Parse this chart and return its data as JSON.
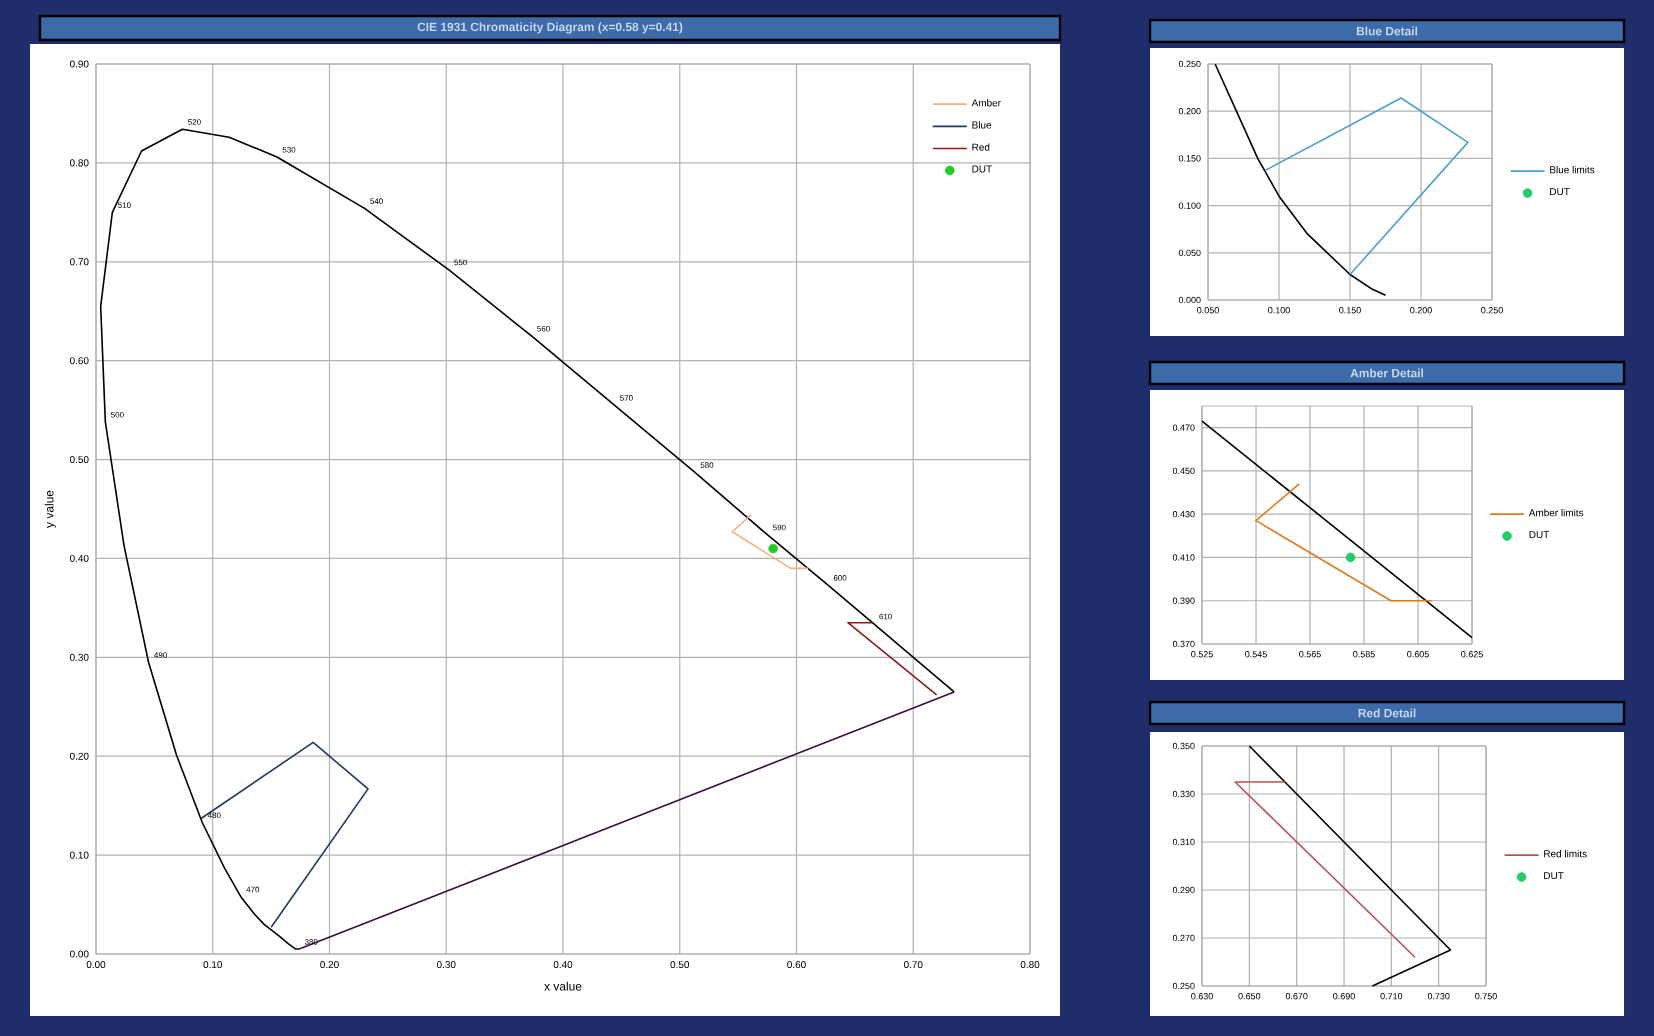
{
  "chart_data": [
    {
      "type": "line",
      "title": "CIE 1931 Chromaticity Diagram (x=0.58 y=0.41)",
      "xlabel": "x value",
      "ylabel": "y value",
      "xlim": [
        0,
        0.8
      ],
      "ylim": [
        0,
        0.9
      ],
      "xticks": [
        {
          "value": 0,
          "label": "0.00"
        },
        {
          "value": 0.1,
          "label": "0.10"
        },
        {
          "value": 0.2,
          "label": "0.20"
        },
        {
          "value": 0.3,
          "label": "0.30"
        },
        {
          "value": 0.4,
          "label": "0.40"
        },
        {
          "value": 0.5,
          "label": "0.50"
        },
        {
          "value": 0.6,
          "label": "0.60"
        },
        {
          "value": 0.7,
          "label": "0.70"
        },
        {
          "value": 0.8,
          "label": "0.80"
        }
      ],
      "yticks": [
        {
          "value": 0,
          "label": "0.00"
        },
        {
          "value": 0.1,
          "label": "0.10"
        },
        {
          "value": 0.2,
          "label": "0.20"
        },
        {
          "value": 0.3,
          "label": "0.30"
        },
        {
          "value": 0.4,
          "label": "0.40"
        },
        {
          "value": 0.5,
          "label": "0.50"
        },
        {
          "value": 0.6,
          "label": "0.60"
        },
        {
          "value": 0.7,
          "label": "0.70"
        },
        {
          "value": 0.8,
          "label": "0.80"
        },
        {
          "value": 0.9,
          "label": "0.90"
        }
      ],
      "grid": true,
      "legend": "top right",
      "series": [
        {
          "color": "#000000",
          "x": [
            0.174,
            0.171,
            0.164,
            0.157,
            0.144,
            0.136,
            0.124,
            0.11,
            0.091,
            0.069,
            0.045,
            0.024,
            0.008,
            0.004,
            0.014,
            0.039,
            0.074,
            0.114,
            0.155,
            0.23,
            0.302,
            0.373,
            0.444,
            0.513,
            0.575,
            0.627,
            0.666,
            0.692,
            0.719,
            0.735
          ],
          "values": [
            0.005,
            0.005,
            0.011,
            0.018,
            0.03,
            0.04,
            0.058,
            0.087,
            0.133,
            0.201,
            0.295,
            0.413,
            0.538,
            0.655,
            0.75,
            0.812,
            0.834,
            0.826,
            0.806,
            0.754,
            0.692,
            0.625,
            0.555,
            0.487,
            0.424,
            0.373,
            0.334,
            0.308,
            0.281,
            0.265
          ]
        },
        {
          "color": "#3a1040",
          "x": [
            0.735,
            0.174
          ],
          "values": [
            0.265,
            0.005
          ]
        },
        {
          "name": "Amber",
          "color": "#f4b183",
          "x": [
            0.561,
            0.545,
            0.595,
            0.61
          ],
          "values": [
            0.444,
            0.427,
            0.39,
            0.39
          ]
        },
        {
          "name": "Blue",
          "color": "#1f3864",
          "x": [
            0.15,
            0.233,
            0.186,
            0.09
          ],
          "values": [
            0.027,
            0.167,
            0.214,
            0.137
          ]
        },
        {
          "name": "Red",
          "color": "#8b1a1a",
          "x": [
            0.665,
            0.644,
            0.72
          ],
          "values": [
            0.335,
            0.335,
            0.262
          ]
        },
        {
          "name": "DUT",
          "type": "scatter",
          "color": "#22cc22",
          "x": [
            0.58
          ],
          "values": [
            0.41
          ]
        }
      ],
      "annotations": [
        {
          "text": "520",
          "x": 0.074,
          "y": 0.834
        },
        {
          "text": "530",
          "x": 0.155,
          "y": 0.806
        },
        {
          "text": "540",
          "x": 0.23,
          "y": 0.754
        },
        {
          "text": "550",
          "x": 0.302,
          "y": 0.692
        },
        {
          "text": "560",
          "x": 0.373,
          "y": 0.625
        },
        {
          "text": "570",
          "x": 0.444,
          "y": 0.555
        },
        {
          "text": "580",
          "x": 0.513,
          "y": 0.487
        },
        {
          "text": "590",
          "x": 0.575,
          "y": 0.424
        },
        {
          "text": "600",
          "x": 0.627,
          "y": 0.373
        },
        {
          "text": "610",
          "x": 0.666,
          "y": 0.334
        },
        {
          "text": "510",
          "x": 0.014,
          "y": 0.75
        },
        {
          "text": "500",
          "x": 0.008,
          "y": 0.538
        },
        {
          "text": "490",
          "x": 0.045,
          "y": 0.295
        },
        {
          "text": "480",
          "x": 0.091,
          "y": 0.133
        },
        {
          "text": "470",
          "x": 0.124,
          "y": 0.058
        },
        {
          "text": "380",
          "x": 0.174,
          "y": 0.005
        }
      ]
    },
    {
      "type": "line",
      "title": "Blue Detail",
      "xlim": [
        0.05,
        0.25
      ],
      "ylim": [
        0,
        0.25
      ],
      "xticks": [
        {
          "value": 0.05,
          "label": "0.050"
        },
        {
          "value": 0.1,
          "label": "0.100"
        },
        {
          "value": 0.15,
          "label": "0.150"
        },
        {
          "value": 0.2,
          "label": "0.200"
        },
        {
          "value": 0.25,
          "label": "0.250"
        }
      ],
      "yticks": [
        {
          "value": 0,
          "label": "0.000"
        },
        {
          "value": 0.05,
          "label": "0.050"
        },
        {
          "value": 0.1,
          "label": "0.100"
        },
        {
          "value": 0.15,
          "label": "0.150"
        },
        {
          "value": 0.2,
          "label": "0.200"
        },
        {
          "value": 0.25,
          "label": "0.250"
        }
      ],
      "grid": true,
      "legend": "right",
      "series": [
        {
          "color": "#000000",
          "x": [
            0.055,
            0.07,
            0.085,
            0.1,
            0.12,
            0.15,
            0.165,
            0.175
          ],
          "values": [
            0.25,
            0.2,
            0.15,
            0.11,
            0.07,
            0.027,
            0.012,
            0.005
          ]
        },
        {
          "name": "Blue limits",
          "color": "#4f9fcf",
          "x": [
            0.15,
            0.233,
            0.186,
            0.09
          ],
          "values": [
            0.027,
            0.167,
            0.214,
            0.137
          ]
        },
        {
          "name": "DUT",
          "type": "scatter",
          "color": "#22cc66"
        }
      ]
    },
    {
      "type": "line",
      "title": "Amber Detail",
      "xlim": [
        0.525,
        0.625
      ],
      "ylim": [
        0.37,
        0.48
      ],
      "xticks": [
        {
          "value": 0.525,
          "label": "0.525"
        },
        {
          "value": 0.545,
          "label": "0.545"
        },
        {
          "value": 0.565,
          "label": "0.565"
        },
        {
          "value": 0.585,
          "label": "0.585"
        },
        {
          "value": 0.605,
          "label": "0.605"
        },
        {
          "value": 0.625,
          "label": "0.625"
        }
      ],
      "yticks": [
        {
          "value": 0.37,
          "label": "0.370"
        },
        {
          "value": 0.39,
          "label": "0.390"
        },
        {
          "value": 0.41,
          "label": "0.410"
        },
        {
          "value": 0.43,
          "label": "0.430"
        },
        {
          "value": 0.45,
          "label": "0.450"
        },
        {
          "value": 0.47,
          "label": "0.470"
        }
      ],
      "grid": true,
      "legend": "right",
      "series": [
        {
          "color": "#000000",
          "x": [
            0.525,
            0.625
          ],
          "values": [
            0.473,
            0.373
          ]
        },
        {
          "name": "Amber limits",
          "color": "#e07b20",
          "x": [
            0.561,
            0.545,
            0.595,
            0.61
          ],
          "values": [
            0.444,
            0.427,
            0.39,
            0.39
          ]
        },
        {
          "name": "DUT",
          "type": "scatter",
          "color": "#22cc66",
          "x": [
            0.58
          ],
          "values": [
            0.41
          ]
        }
      ]
    },
    {
      "type": "line",
      "title": "Red Detail",
      "xlim": [
        0.63,
        0.75
      ],
      "ylim": [
        0.25,
        0.35
      ],
      "xticks": [
        {
          "value": 0.63,
          "label": "0.630"
        },
        {
          "value": 0.65,
          "label": "0.650"
        },
        {
          "value": 0.67,
          "label": "0.670"
        },
        {
          "value": 0.69,
          "label": "0.690"
        },
        {
          "value": 0.71,
          "label": "0.710"
        },
        {
          "value": 0.73,
          "label": "0.730"
        },
        {
          "value": 0.75,
          "label": "0.750"
        }
      ],
      "yticks": [
        {
          "value": 0.25,
          "label": "0.250"
        },
        {
          "value": 0.27,
          "label": "0.270"
        },
        {
          "value": 0.29,
          "label": "0.290"
        },
        {
          "value": 0.31,
          "label": "0.310"
        },
        {
          "value": 0.33,
          "label": "0.330"
        },
        {
          "value": 0.35,
          "label": "0.350"
        }
      ],
      "grid": true,
      "legend": "right",
      "series": [
        {
          "color": "#000000",
          "x": [
            0.65,
            0.735,
            0.702
          ],
          "values": [
            0.35,
            0.265,
            0.25
          ]
        },
        {
          "name": "Red limits",
          "color": "#c0504d",
          "x": [
            0.665,
            0.644,
            0.72
          ],
          "values": [
            0.335,
            0.335,
            0.262
          ]
        },
        {
          "name": "DUT",
          "type": "scatter",
          "color": "#22cc66"
        }
      ]
    }
  ]
}
